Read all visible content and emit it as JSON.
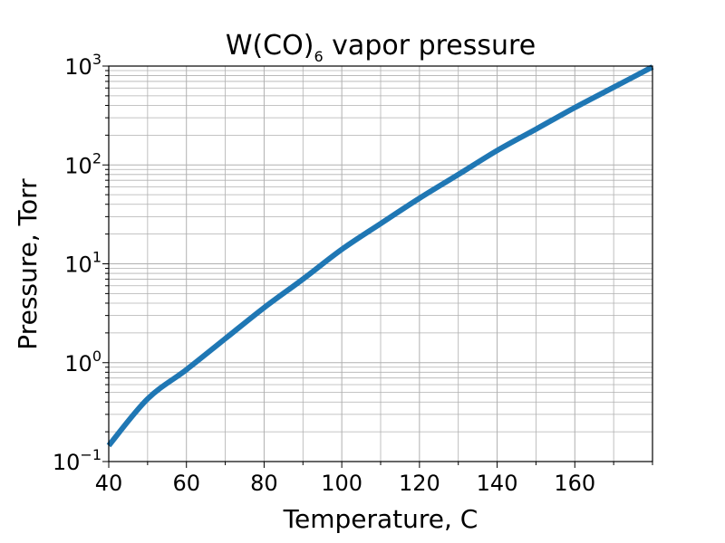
{
  "chart_data": {
    "type": "line",
    "title": {
      "base": "W(CO)",
      "subscript": "6",
      "rest": " vapor pressure"
    },
    "xlabel": "Temperature, C",
    "ylabel": "Pressure, Torr",
    "xlim": [
      40,
      180
    ],
    "ylim": [
      0.1,
      1000
    ],
    "yscale": "log",
    "grid": true,
    "grid_minor": true,
    "x_ticks": [
      40,
      60,
      80,
      100,
      120,
      140,
      160
    ],
    "x_tick_labels": [
      "40",
      "60",
      "80",
      "100",
      "120",
      "140",
      "160"
    ],
    "y_ticks": [
      0.1,
      1,
      10,
      100,
      1000
    ],
    "y_tick_labels": [
      {
        "base": "10",
        "exp": "−1"
      },
      {
        "base": "10",
        "exp": "0"
      },
      {
        "base": "10",
        "exp": "1"
      },
      {
        "base": "10",
        "exp": "2"
      },
      {
        "base": "10",
        "exp": "3"
      }
    ],
    "series": [
      {
        "name": "W(CO)6 vapor pressure",
        "color": "#1f77b4",
        "x": [
          40,
          50,
          60,
          70,
          80,
          90,
          100,
          110,
          120,
          130,
          140,
          150,
          160,
          170,
          180
        ],
        "y": [
          0.145,
          0.43,
          0.85,
          1.75,
          3.6,
          7.0,
          14.0,
          25.5,
          46.0,
          80.0,
          140.0,
          230.0,
          380.0,
          610.0,
          980.0
        ]
      }
    ]
  }
}
